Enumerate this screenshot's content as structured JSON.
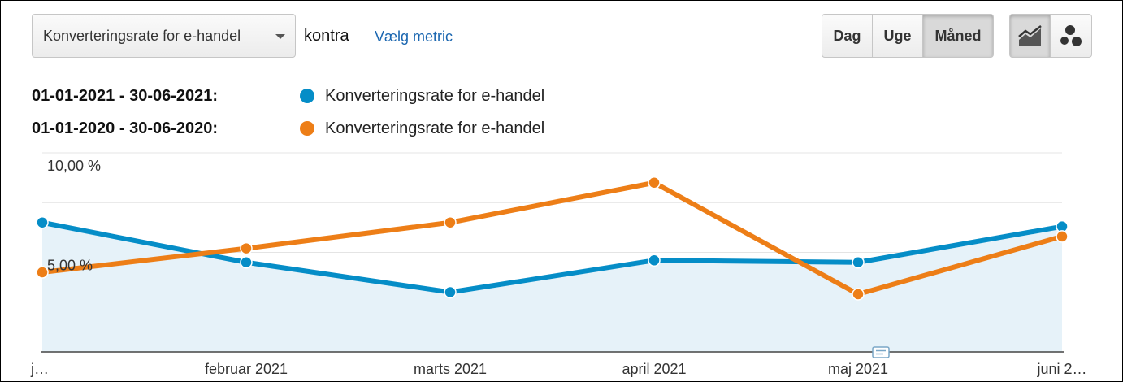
{
  "controls": {
    "metric_label": "Konverteringsrate for e-handel",
    "versus_label": "kontra",
    "pick_metric_label": "Vælg metric",
    "periods": [
      {
        "label": "Dag",
        "active": false
      },
      {
        "label": "Uge",
        "active": false
      },
      {
        "label": "Måned",
        "active": true
      }
    ],
    "chart_types": [
      {
        "icon": "line-chart-icon",
        "active": true
      },
      {
        "icon": "motion-chart-icon",
        "active": false
      }
    ]
  },
  "legend": [
    {
      "range": "01-01-2021 - 30-06-2021:",
      "series_label": "Konverteringsrate for e-handel",
      "color": "#058dc7"
    },
    {
      "range": "01-01-2020 - 30-06-2020:",
      "series_label": "Konverteringsrate for e-handel",
      "color": "#ed7e17"
    }
  ],
  "chart_data": {
    "type": "line",
    "categories": [
      "j…",
      "februar 2021",
      "marts 2021",
      "april 2021",
      "maj 2021",
      "juni 2…"
    ],
    "y_tick_labels": [
      "10,00 %",
      "5,00 %"
    ],
    "y_tick_values": [
      10,
      5
    ],
    "ylim": [
      0,
      10
    ],
    "grid": true,
    "legend_position": "top-left",
    "series": [
      {
        "color": "#058dc7",
        "fill": true,
        "values": [
          6.5,
          4.5,
          3.0,
          4.6,
          4.5,
          6.3
        ]
      },
      {
        "color": "#ed7e17",
        "fill": false,
        "values": [
          4.0,
          5.2,
          6.5,
          8.5,
          2.9,
          5.8
        ]
      }
    ]
  }
}
